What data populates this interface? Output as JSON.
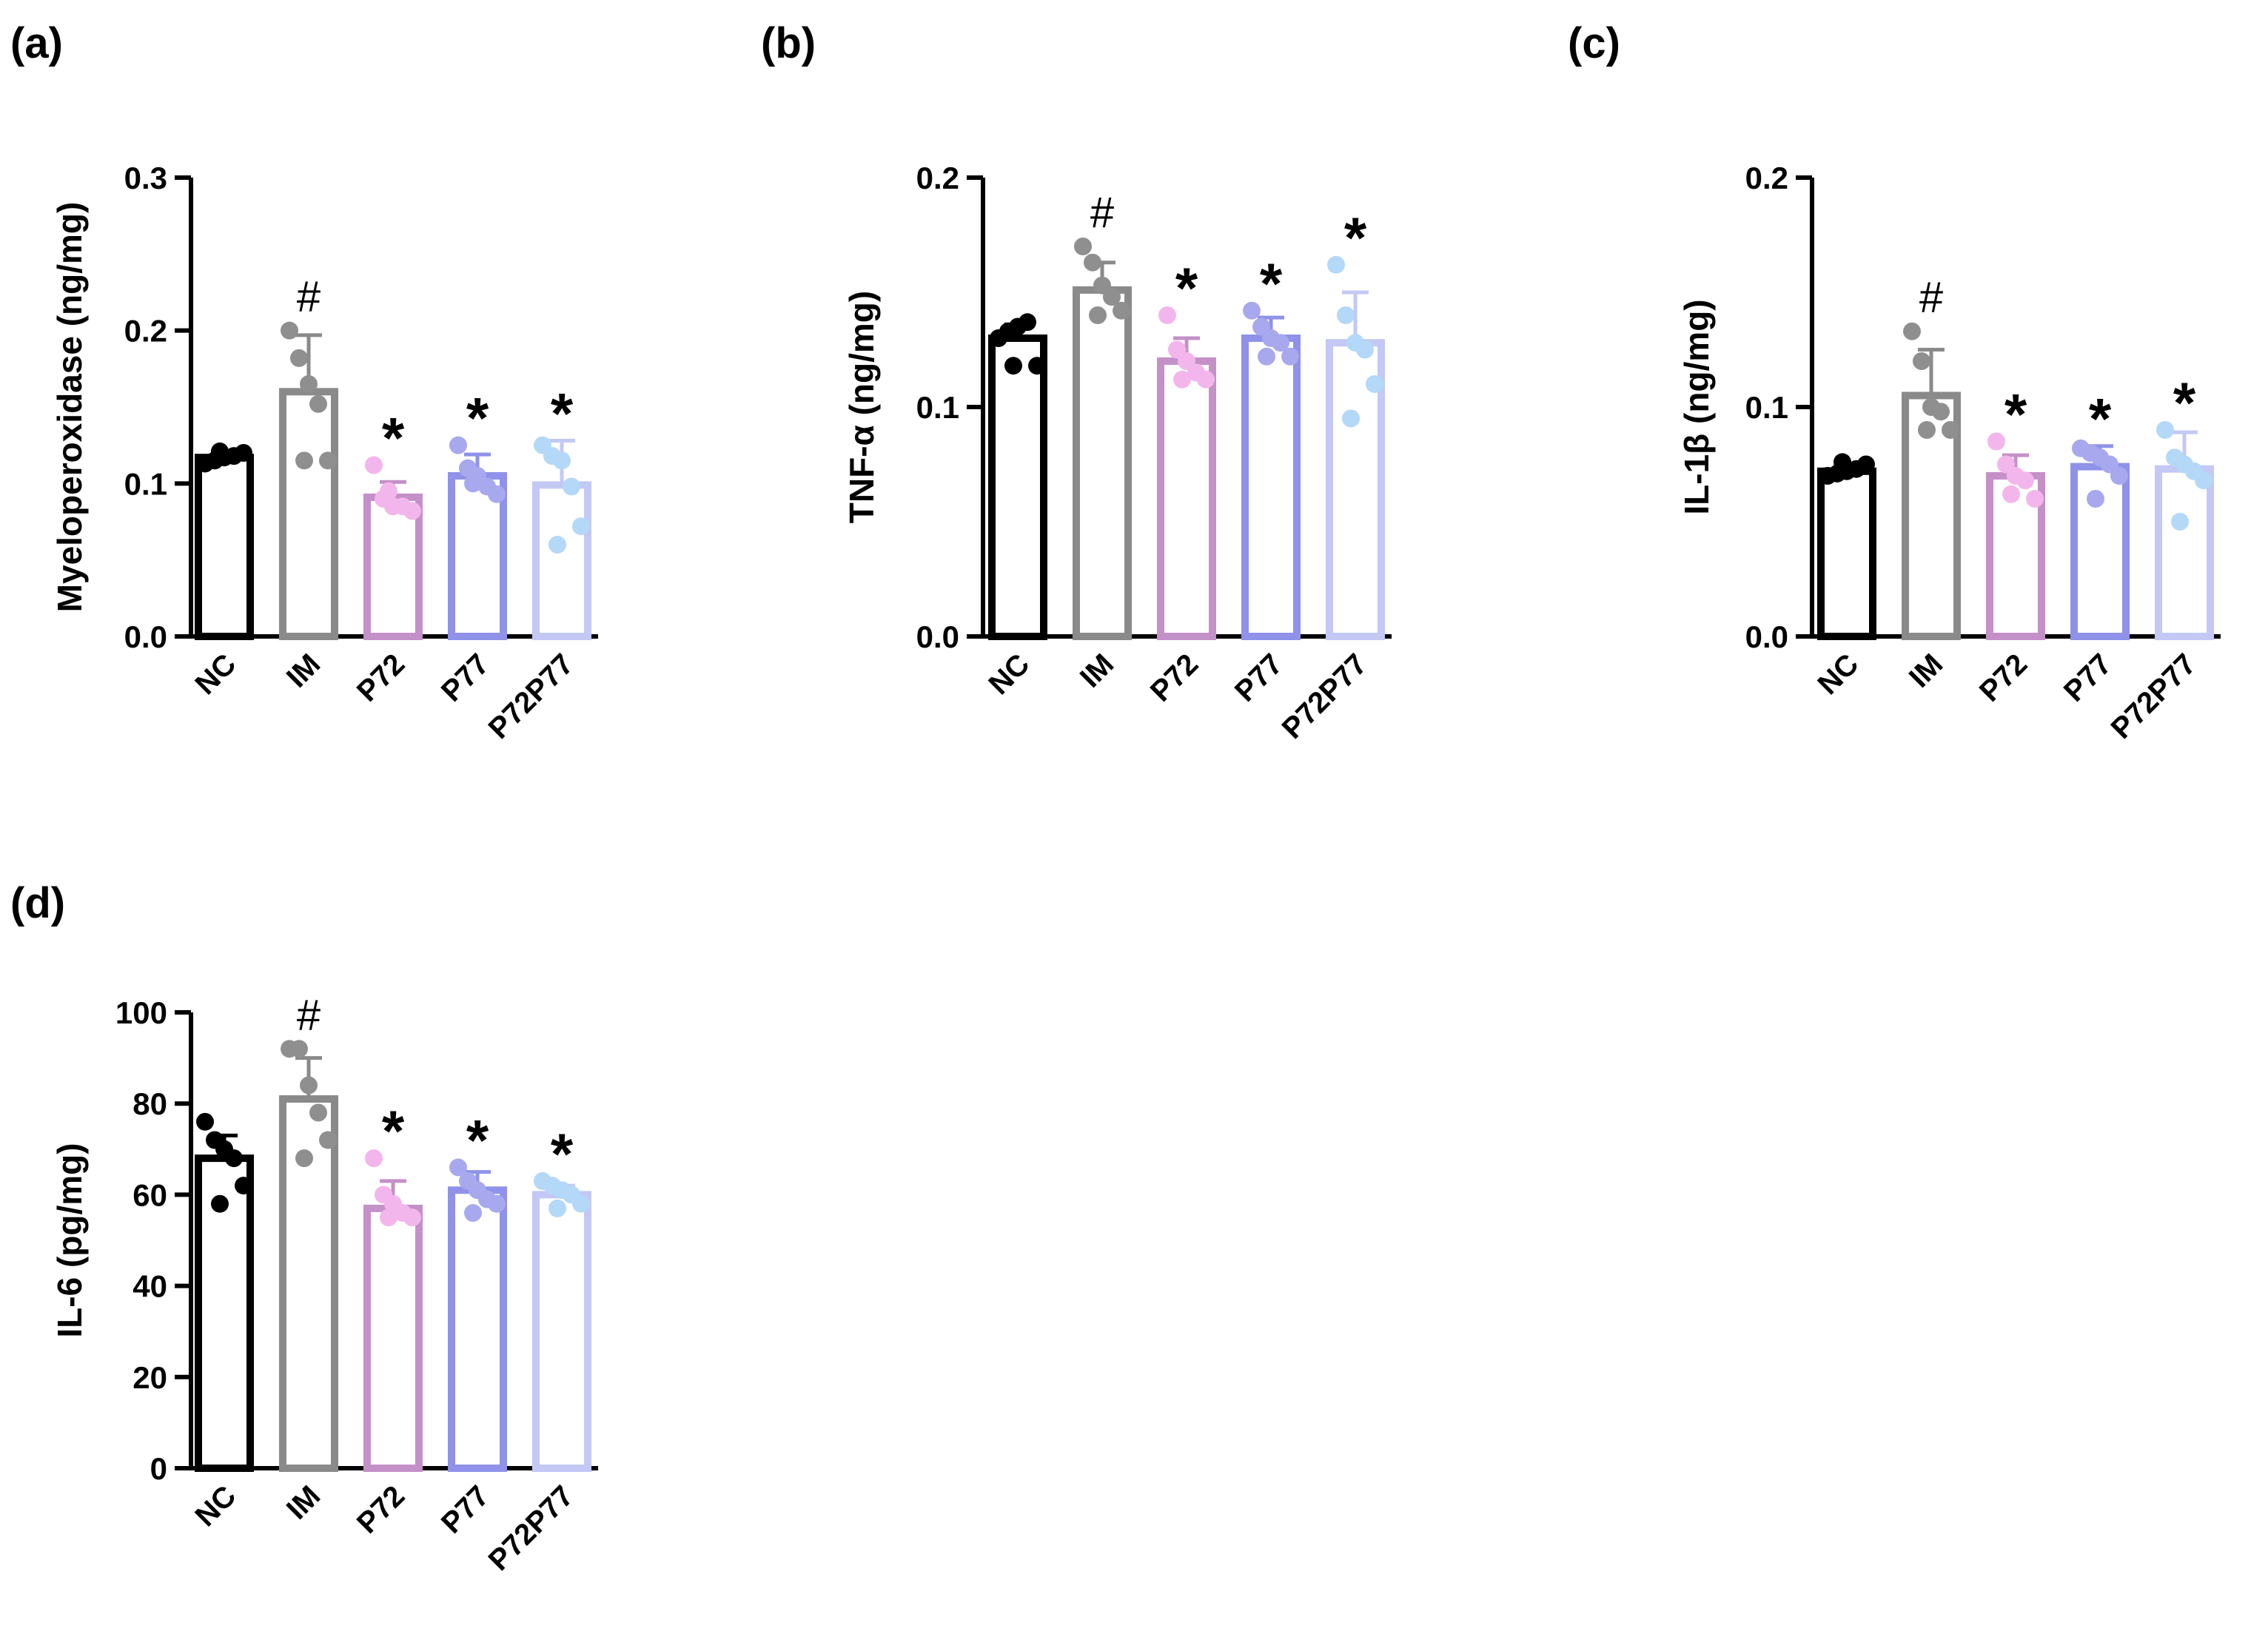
{
  "figure": {
    "categories": [
      "NC",
      "IM",
      "P72",
      "P77",
      "P72P77"
    ],
    "colors": {
      "NC": "#000000",
      "IM": "#8a8a8a",
      "P72": "#c490c8",
      "P77": "#8f92e8",
      "P72P77": "#c3c8f5"
    },
    "dot_colors": {
      "NC": "#000000",
      "IM": "#8f8f8f",
      "P72": "#f3b6ec",
      "P77": "#a8a8ee",
      "P72P77": "#b4d8f8"
    }
  },
  "chart_data": [
    {
      "panel_label": "(a)",
      "type": "bar",
      "ylabel": "Myeloperoxidase (ng/mg)",
      "ylim": [
        0,
        0.3
      ],
      "yticks": [
        "0.0",
        "0.1",
        "0.2",
        "0.3"
      ],
      "ytick_values": [
        0,
        0.1,
        0.2,
        0.3
      ],
      "categories": [
        "NC",
        "IM",
        "P72",
        "P77",
        "P72P77"
      ],
      "values": [
        0.117,
        0.16,
        0.091,
        0.105,
        0.099
      ],
      "error_sd": [
        0.004,
        0.037,
        0.01,
        0.014,
        0.029
      ],
      "points": [
        [
          0.113,
          0.115,
          0.117,
          0.118,
          0.12,
          0.121
        ],
        [
          0.2,
          0.182,
          0.165,
          0.152,
          0.115,
          0.115
        ],
        [
          0.112,
          0.09,
          0.085,
          0.085,
          0.082,
          0.095
        ],
        [
          0.125,
          0.11,
          0.105,
          0.098,
          0.093,
          0.1
        ],
        [
          0.125,
          0.118,
          0.115,
          0.098,
          0.072,
          0.06
        ]
      ],
      "significance": [
        "",
        "#",
        "*",
        "*",
        "*"
      ]
    },
    {
      "panel_label": "(b)",
      "type": "bar",
      "ylabel": "TNF-α (ng/mg)",
      "ylim": [
        0,
        0.2
      ],
      "yticks": [
        "0.0",
        "0.1",
        "0.2"
      ],
      "ytick_values": [
        0,
        0.1,
        0.2
      ],
      "categories": [
        "NC",
        "IM",
        "P72",
        "P77",
        "P72P77"
      ],
      "values": [
        0.13,
        0.151,
        0.12,
        0.13,
        0.128
      ],
      "error_sd": [
        0.006,
        0.012,
        0.01,
        0.009,
        0.022
      ],
      "points": [
        [
          0.13,
          0.133,
          0.135,
          0.137,
          0.118,
          0.118
        ],
        [
          0.17,
          0.163,
          0.153,
          0.148,
          0.142,
          0.14
        ],
        [
          0.14,
          0.125,
          0.12,
          0.115,
          0.112,
          0.112
        ],
        [
          0.142,
          0.135,
          0.13,
          0.128,
          0.122,
          0.122
        ],
        [
          0.162,
          0.14,
          0.128,
          0.125,
          0.11,
          0.095
        ]
      ],
      "significance": [
        "",
        "#",
        "*",
        "*",
        "*"
      ]
    },
    {
      "panel_label": "(c)",
      "type": "bar",
      "ylabel": "IL-1β (ng/mg)",
      "ylim": [
        0,
        0.2
      ],
      "yticks": [
        "0.0",
        "0.1",
        "0.2"
      ],
      "ytick_values": [
        0,
        0.1,
        0.2
      ],
      "categories": [
        "NC",
        "IM",
        "P72",
        "P77",
        "P72P77"
      ],
      "values": [
        0.072,
        0.105,
        0.07,
        0.074,
        0.073
      ],
      "error_sd": [
        0.002,
        0.02,
        0.009,
        0.009,
        0.016
      ],
      "points": [
        [
          0.07,
          0.071,
          0.072,
          0.073,
          0.075,
          0.076
        ],
        [
          0.133,
          0.12,
          0.1,
          0.098,
          0.09,
          0.09
        ],
        [
          0.085,
          0.075,
          0.07,
          0.068,
          0.06,
          0.062
        ],
        [
          0.082,
          0.08,
          0.078,
          0.075,
          0.07,
          0.06
        ],
        [
          0.09,
          0.078,
          0.075,
          0.072,
          0.068,
          0.05
        ]
      ],
      "significance": [
        "",
        "#",
        "*",
        "*",
        "*"
      ]
    },
    {
      "panel_label": "(d)",
      "type": "bar",
      "ylabel": "IL-6 (pg/mg)",
      "ylim": [
        0,
        100
      ],
      "yticks": [
        "0",
        "20",
        "40",
        "60",
        "80",
        "100"
      ],
      "ytick_values": [
        0,
        20,
        40,
        60,
        80,
        100
      ],
      "categories": [
        "NC",
        "IM",
        "P72",
        "P77",
        "P72P77"
      ],
      "values": [
        68,
        81,
        57,
        61,
        60
      ],
      "error_sd": [
        5,
        9,
        6,
        4,
        2
      ],
      "points": [
        [
          76,
          72,
          70,
          68,
          62,
          58
        ],
        [
          92,
          92,
          84,
          78,
          72,
          68
        ],
        [
          68,
          60,
          58,
          56,
          55,
          55
        ],
        [
          66,
          63,
          61,
          59,
          58,
          56
        ],
        [
          63,
          62,
          61,
          60,
          58,
          57
        ]
      ],
      "significance": [
        "",
        "#",
        "*",
        "*",
        "*"
      ]
    }
  ]
}
